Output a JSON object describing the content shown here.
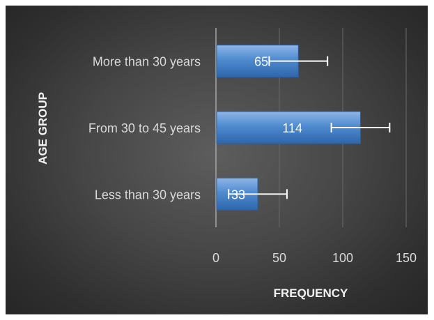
{
  "chart_data": {
    "type": "bar",
    "orientation": "horizontal",
    "categories": [
      "More than 30 years",
      "From 30 to 45 years",
      "Less than 30 years"
    ],
    "values": [
      65,
      114,
      33
    ],
    "error_bars": [
      {
        "low": 42,
        "high": 88
      },
      {
        "low": 91,
        "high": 137
      },
      {
        "low": 10,
        "high": 56
      }
    ],
    "data_labels": [
      "65",
      "114",
      "33"
    ],
    "xlabel": "FREQUENCY",
    "ylabel": "AGE GROUP",
    "xlim": [
      0,
      150
    ],
    "xticks": [
      "0",
      "50",
      "100",
      "150"
    ],
    "grid": "vertical",
    "bar_color": "#4a86c9",
    "background_color": "#3c3c3c"
  }
}
